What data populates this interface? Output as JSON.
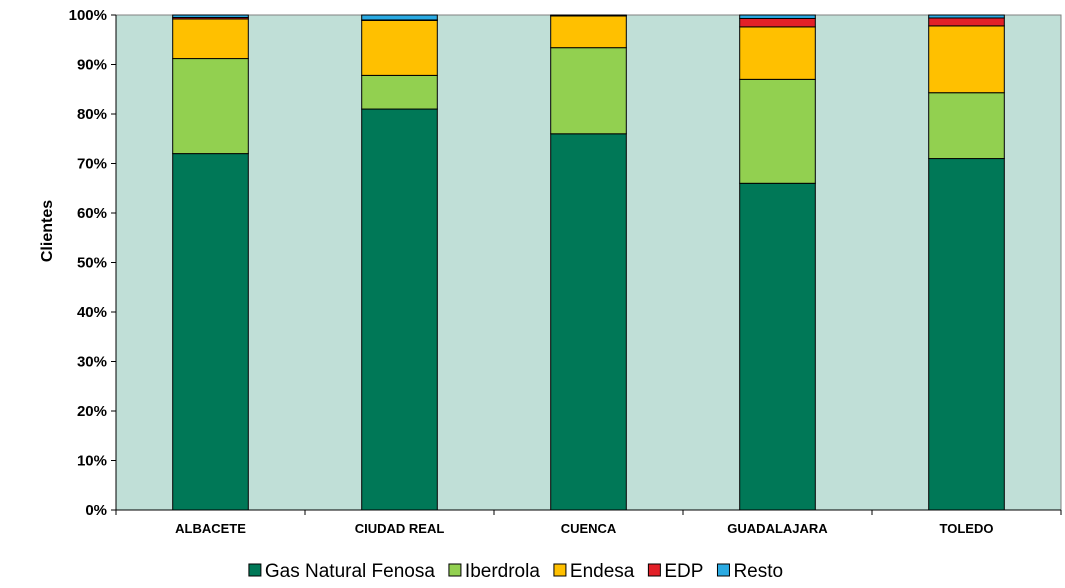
{
  "chart_data": {
    "type": "bar",
    "stacked": true,
    "title": "",
    "xlabel": "",
    "ylabel": "Clientes",
    "ylim": [
      0,
      100
    ],
    "yticks": [
      "0%",
      "10%",
      "20%",
      "30%",
      "40%",
      "50%",
      "60%",
      "70%",
      "80%",
      "90%",
      "100%"
    ],
    "plot_background": "#c0dfd7",
    "grid": false,
    "legend_position": "bottom",
    "categories": [
      "ALBACETE",
      "CIUDAD REAL",
      "CUENCA",
      "GUADALAJARA",
      "TOLEDO"
    ],
    "series": [
      {
        "name": "Gas Natural Fenosa",
        "color": "#007857",
        "values": [
          72.0,
          81.0,
          76.0,
          66.0,
          71.0
        ]
      },
      {
        "name": "Iberdrola",
        "color": "#92d050",
        "values": [
          19.2,
          6.8,
          17.4,
          21.0,
          13.3
        ]
      },
      {
        "name": "Endesa",
        "color": "#ffc000",
        "values": [
          8.0,
          11.1,
          6.4,
          10.6,
          13.5
        ]
      },
      {
        "name": "EDP",
        "color": "#e32028",
        "values": [
          0.3,
          0.1,
          0.1,
          1.7,
          1.6
        ]
      },
      {
        "name": "Resto",
        "color": "#2aaae2",
        "values": [
          0.5,
          1.0,
          0.1,
          0.7,
          0.6
        ]
      }
    ]
  }
}
